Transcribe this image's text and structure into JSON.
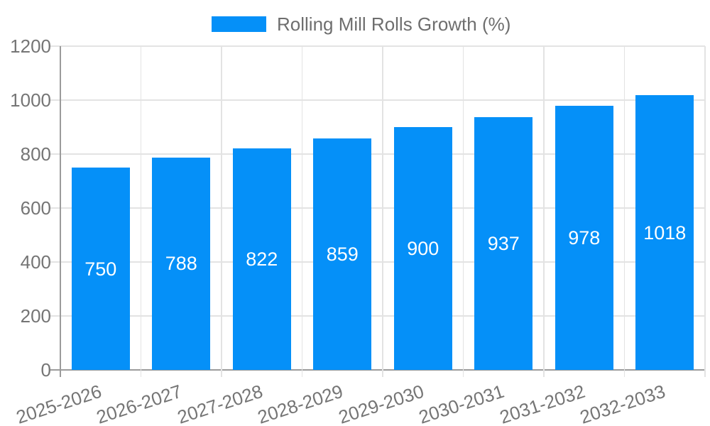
{
  "chart_data": {
    "type": "bar",
    "legend_label": "Rolling Mill Rolls Growth (%)",
    "categories": [
      "2025-2026",
      "2026-2027",
      "2027-2028",
      "2028-2029",
      "2029-2030",
      "2030-2031",
      "2031-2032",
      "2032-2033"
    ],
    "values": [
      750,
      788,
      822,
      859,
      900,
      937,
      978,
      1018
    ],
    "value_labels": [
      "750",
      "788",
      "822",
      "859",
      "900",
      "937",
      "978",
      "1018"
    ],
    "xlabel": "",
    "ylabel": "",
    "ylim": [
      0,
      1200
    ],
    "yticks": [
      0,
      200,
      400,
      600,
      800,
      1000,
      1200
    ],
    "ytick_labels": [
      "0",
      "200",
      "400",
      "600",
      "800",
      "1000",
      "1200"
    ],
    "grid": "on",
    "legend_position": "top-center",
    "colors": {
      "bar": "#0590f8",
      "bar_value_text": "#ffffff",
      "gridline": "#e3e3e3",
      "axis_line": "#9b9b9b",
      "tick_text": "#757575",
      "legend_text": "#6e6e6e",
      "background": "#ffffff"
    }
  }
}
